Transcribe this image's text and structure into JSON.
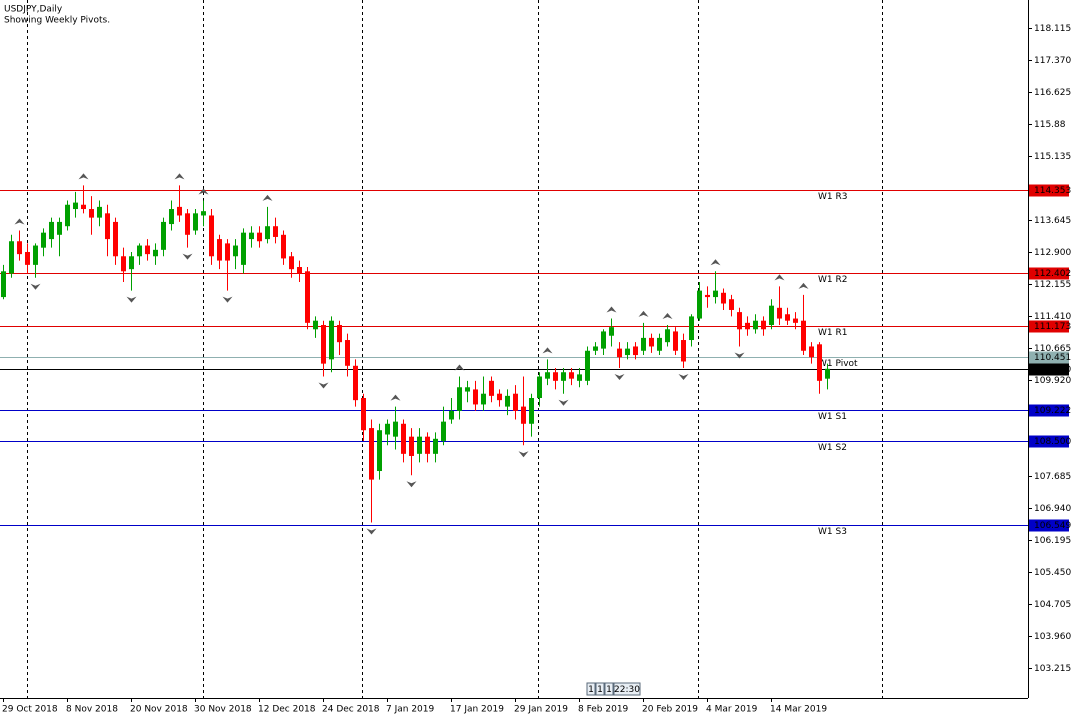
{
  "chart_data": {
    "type": "candlestick",
    "title": "USDJPY,Daily",
    "subtitle": "Showing Weekly Pivots.",
    "categories": [
      "29 Oct 2018",
      null,
      null,
      null,
      null,
      null,
      null,
      null,
      "8 Nov 2018",
      null,
      null,
      null,
      null,
      null,
      null,
      null,
      "20 Nov 2018",
      null,
      null,
      null,
      null,
      null,
      null,
      null,
      "30 Nov 2018",
      null,
      null,
      null,
      null,
      null,
      null,
      null,
      "12 Dec 2018",
      null,
      null,
      null,
      null,
      null,
      null,
      null,
      "24 Dec 2018",
      null,
      null,
      null,
      null,
      null,
      null,
      null,
      "7 Jan 2019",
      null,
      null,
      null,
      null,
      null,
      null,
      null,
      "17 Jan 2019",
      null,
      null,
      null,
      null,
      null,
      null,
      null,
      "29 Jan 2019",
      null,
      null,
      null,
      null,
      null,
      null,
      null,
      "8 Feb 2019",
      null,
      null,
      null,
      null,
      null,
      null,
      null,
      "20 Feb 2019",
      null,
      null,
      null,
      null,
      null,
      null,
      null,
      "4 Mar 2019",
      null,
      null,
      null,
      null,
      null,
      null,
      null,
      "14 Mar 2019",
      null,
      null,
      null,
      null,
      null,
      null,
      null
    ],
    "ohlc": [
      [
        111.85,
        112.6,
        111.8,
        112.45
      ],
      [
        112.4,
        113.3,
        112.3,
        113.15
      ],
      [
        113.15,
        113.4,
        112.7,
        112.85
      ],
      [
        112.9,
        113.1,
        112.4,
        112.6
      ],
      [
        112.6,
        113.1,
        112.3,
        113.05
      ],
      [
        113.0,
        113.45,
        112.8,
        113.35
      ],
      [
        113.2,
        113.7,
        113.0,
        113.6
      ],
      [
        113.3,
        113.7,
        112.8,
        113.6
      ],
      [
        113.5,
        114.1,
        113.4,
        114.0
      ],
      [
        113.9,
        114.3,
        113.7,
        114.05
      ],
      [
        114.0,
        114.45,
        113.8,
        113.9
      ],
      [
        113.9,
        114.2,
        113.3,
        113.7
      ],
      [
        113.7,
        114.1,
        113.5,
        113.95
      ],
      [
        113.8,
        114.0,
        112.8,
        113.2
      ],
      [
        113.6,
        113.7,
        112.6,
        112.8
      ],
      [
        112.8,
        113.0,
        112.2,
        112.45
      ],
      [
        112.5,
        112.9,
        112.0,
        112.8
      ],
      [
        112.8,
        113.1,
        112.6,
        113.05
      ],
      [
        113.05,
        113.2,
        112.7,
        112.85
      ],
      [
        112.8,
        113.1,
        112.6,
        112.95
      ],
      [
        112.95,
        113.7,
        112.8,
        113.6
      ],
      [
        113.55,
        114.1,
        113.4,
        113.9
      ],
      [
        113.95,
        114.45,
        113.6,
        113.75
      ],
      [
        113.8,
        113.9,
        113.0,
        113.3
      ],
      [
        113.4,
        113.9,
        113.3,
        113.8
      ],
      [
        113.75,
        114.1,
        113.5,
        113.85
      ],
      [
        113.75,
        113.9,
        112.6,
        112.8
      ],
      [
        113.2,
        113.3,
        112.5,
        112.7
      ],
      [
        113.1,
        113.2,
        112.0,
        112.7
      ],
      [
        112.8,
        113.2,
        112.5,
        113.05
      ],
      [
        112.6,
        113.45,
        112.4,
        113.35
      ],
      [
        113.2,
        113.5,
        113.0,
        113.35
      ],
      [
        113.35,
        113.5,
        113.0,
        113.15
      ],
      [
        113.2,
        113.95,
        113.1,
        113.5
      ],
      [
        113.5,
        113.7,
        113.1,
        113.25
      ],
      [
        113.3,
        113.4,
        112.6,
        112.75
      ],
      [
        112.8,
        112.9,
        112.3,
        112.5
      ],
      [
        112.55,
        112.7,
        112.2,
        112.4
      ],
      [
        112.45,
        112.55,
        111.1,
        111.25
      ],
      [
        111.1,
        111.4,
        110.9,
        111.3
      ],
      [
        111.2,
        111.3,
        110.0,
        110.3
      ],
      [
        110.4,
        111.4,
        110.1,
        111.3
      ],
      [
        111.2,
        111.3,
        110.5,
        110.8
      ],
      [
        110.85,
        111.0,
        110.0,
        110.25
      ],
      [
        110.25,
        110.4,
        109.3,
        109.45
      ],
      [
        109.5,
        109.6,
        108.5,
        108.75
      ],
      [
        108.8,
        109.0,
        106.6,
        107.6
      ],
      [
        107.8,
        108.9,
        107.6,
        108.75
      ],
      [
        108.65,
        109.0,
        108.4,
        108.9
      ],
      [
        108.6,
        109.3,
        108.3,
        108.95
      ],
      [
        108.9,
        109.0,
        108.0,
        108.2
      ],
      [
        108.6,
        108.8,
        107.7,
        108.15
      ],
      [
        108.2,
        108.8,
        108.0,
        108.6
      ],
      [
        108.6,
        108.7,
        108.0,
        108.2
      ],
      [
        108.2,
        108.7,
        108.0,
        108.55
      ],
      [
        108.5,
        109.3,
        108.4,
        108.95
      ],
      [
        109.0,
        109.5,
        108.9,
        109.2
      ],
      [
        109.2,
        110.0,
        109.0,
        109.75
      ],
      [
        109.65,
        109.9,
        109.4,
        109.75
      ],
      [
        109.7,
        109.9,
        109.2,
        109.35
      ],
      [
        109.35,
        110.0,
        109.2,
        109.6
      ],
      [
        109.9,
        110.0,
        109.4,
        109.55
      ],
      [
        109.6,
        109.7,
        109.3,
        109.45
      ],
      [
        109.3,
        109.7,
        109.1,
        109.55
      ],
      [
        109.6,
        109.8,
        109.0,
        109.2
      ],
      [
        109.3,
        110.0,
        108.4,
        108.9
      ],
      [
        108.9,
        109.6,
        108.6,
        109.5
      ],
      [
        109.5,
        110.1,
        109.3,
        110.0
      ],
      [
        109.95,
        110.4,
        109.8,
        110.1
      ],
      [
        110.1,
        110.2,
        109.7,
        109.9
      ],
      [
        109.9,
        110.2,
        109.6,
        110.1
      ],
      [
        110.1,
        110.2,
        109.8,
        109.95
      ],
      [
        109.9,
        110.2,
        109.75,
        110.05
      ],
      [
        109.9,
        110.7,
        109.8,
        110.6
      ],
      [
        110.6,
        110.8,
        110.5,
        110.7
      ],
      [
        110.65,
        111.1,
        110.5,
        111.05
      ],
      [
        110.95,
        111.35,
        110.7,
        111.15
      ],
      [
        110.65,
        110.8,
        110.2,
        110.45
      ],
      [
        110.5,
        110.8,
        110.4,
        110.65
      ],
      [
        110.7,
        110.8,
        110.4,
        110.5
      ],
      [
        110.6,
        111.25,
        110.5,
        110.9
      ],
      [
        110.9,
        111.0,
        110.55,
        110.7
      ],
      [
        110.6,
        111.0,
        110.5,
        110.9
      ],
      [
        110.8,
        111.2,
        110.7,
        111.1
      ],
      [
        111.05,
        111.15,
        110.5,
        110.6
      ],
      [
        110.85,
        111.0,
        110.2,
        110.35
      ],
      [
        110.85,
        111.45,
        110.7,
        111.4
      ],
      [
        111.35,
        112.2,
        111.3,
        112.0
      ],
      [
        111.9,
        112.1,
        111.6,
        111.85
      ],
      [
        111.85,
        112.45,
        111.7,
        112.0
      ],
      [
        111.95,
        112.05,
        111.55,
        111.7
      ],
      [
        111.8,
        111.9,
        111.4,
        111.55
      ],
      [
        111.5,
        111.6,
        110.7,
        111.1
      ],
      [
        111.25,
        111.4,
        110.95,
        111.1
      ],
      [
        111.1,
        111.45,
        111.0,
        111.3
      ],
      [
        111.3,
        111.4,
        110.95,
        111.1
      ],
      [
        111.2,
        111.8,
        111.1,
        111.65
      ],
      [
        111.6,
        112.1,
        111.2,
        111.35
      ],
      [
        111.45,
        111.6,
        111.2,
        111.3
      ],
      [
        111.35,
        111.5,
        111.1,
        111.25
      ],
      [
        111.3,
        111.9,
        110.5,
        110.6
      ],
      [
        110.7,
        110.8,
        110.3,
        110.45
      ],
      [
        110.75,
        110.8,
        109.6,
        109.9
      ],
      [
        109.95,
        110.3,
        109.7,
        110.18
      ]
    ],
    "bull_color": "#00a000",
    "bear_color": "#ff0000",
    "ylim": [
      102.515,
      118.767
    ],
    "yticks": [
      118.115,
      {
        "value": 117.37,
        "label": "117.370"
      },
      116.625,
      115.88,
      115.135,
      113.645,
      {
        "value": 112.9,
        "label": "112.900"
      },
      112.155,
      {
        "value": 111.41,
        "label": "111.410"
      },
      110.665,
      {
        "value": 109.92,
        "label": "109.920"
      },
      107.685,
      {
        "value": 106.94,
        "label": "106.940"
      },
      106.195,
      {
        "value": 105.45,
        "label": "105.450"
      },
      104.705,
      {
        "value": 103.96,
        "label": "103.960"
      },
      103.215
    ],
    "pivots": [
      {
        "name": "W1 R3",
        "value": 114.353,
        "color": "#e00000"
      },
      {
        "name": "W1 R2",
        "value": 112.402,
        "color": "#e00000"
      },
      {
        "name": "W1 R1",
        "value": 111.173,
        "color": "#e00000"
      },
      {
        "name": "W1 Pivot",
        "value": 110.451,
        "color": "#8fb0b0"
      },
      {
        "name": "W1 S1",
        "value": 109.222,
        "color": "#0000c8"
      },
      {
        "name": "W1 S2",
        "value": {
          "value": 108.5,
          "label": "108.500"
        },
        "color": "#0000c8"
      },
      {
        "name": "W1 S3",
        "value": 106.549,
        "color": "#0000c8"
      }
    ],
    "price": {
      "value": 110.18,
      "label": "110.180"
    },
    "scale_buttons": [
      "1",
      "1",
      "1",
      "22:30"
    ]
  }
}
